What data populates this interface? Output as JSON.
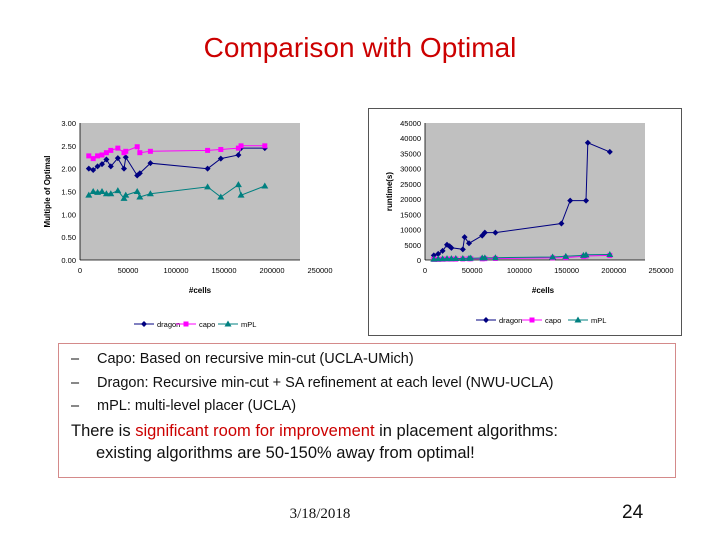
{
  "slide": {
    "title": "Comparison with Optimal",
    "bullets": [
      "Capo: Based on recursive min-cut (UCLA-UMich)",
      "Dragon: Recursive min-cut + SA refinement at each level (NWU-UCLA)",
      "mPL: multi-level placer (UCLA)"
    ],
    "bullet_marker": "–",
    "statement_before": "There is ",
    "statement_highlight": "significant room for improvement",
    "statement_after": " in placement algorithms:",
    "statement_line2": "existing algorithms are 50-150% away from optimal!",
    "date": "3/18/2018",
    "page_number": "24"
  },
  "colors": {
    "title": "#cc0000",
    "highlight": "#cc0000",
    "plot_bg": "#c0c0c0",
    "dragon": "#000080",
    "capo": "#ff00ff",
    "mpl": "#008080"
  },
  "chart_data": [
    {
      "type": "line",
      "xlabel": "#cells",
      "ylabel": "Multiple of Optimal",
      "xlim": [
        0,
        250000
      ],
      "ylim": [
        0,
        3
      ],
      "x_ticks": [
        "0",
        "50000",
        "100000",
        "150000",
        "200000",
        "250000"
      ],
      "y_ticks": [
        "0.00",
        "0.50",
        "1.00",
        "1.50",
        "2.00",
        "2.50",
        "3.00"
      ],
      "legend": "bottom",
      "series": [
        {
          "name": "dragon",
          "marker": "diamond",
          "points": [
            [
              10000,
              2.0
            ],
            [
              15000,
              1.97
            ],
            [
              20000,
              2.05
            ],
            [
              25000,
              2.1
            ],
            [
              30000,
              2.2
            ],
            [
              35000,
              2.05
            ],
            [
              43000,
              2.23
            ],
            [
              50000,
              2.0
            ],
            [
              52000,
              2.25
            ],
            [
              65000,
              1.85
            ],
            [
              68000,
              1.9
            ],
            [
              80000,
              2.12
            ],
            [
              145000,
              2.0
            ],
            [
              160000,
              2.22
            ],
            [
              180000,
              2.3
            ],
            [
              183000,
              2.45
            ],
            [
              210000,
              2.45
            ]
          ]
        },
        {
          "name": "capo",
          "marker": "square",
          "points": [
            [
              10000,
              2.28
            ],
            [
              15000,
              2.22
            ],
            [
              20000,
              2.28
            ],
            [
              25000,
              2.3
            ],
            [
              30000,
              2.35
            ],
            [
              35000,
              2.4
            ],
            [
              43000,
              2.45
            ],
            [
              50000,
              2.35
            ],
            [
              52000,
              2.38
            ],
            [
              65000,
              2.48
            ],
            [
              68000,
              2.35
            ],
            [
              80000,
              2.38
            ],
            [
              145000,
              2.4
            ],
            [
              160000,
              2.42
            ],
            [
              180000,
              2.45
            ],
            [
              183000,
              2.5
            ],
            [
              210000,
              2.5
            ]
          ]
        },
        {
          "name": "mPL",
          "marker": "triangle",
          "points": [
            [
              10000,
              1.42
            ],
            [
              15000,
              1.5
            ],
            [
              20000,
              1.48
            ],
            [
              25000,
              1.5
            ],
            [
              30000,
              1.45
            ],
            [
              35000,
              1.45
            ],
            [
              43000,
              1.52
            ],
            [
              50000,
              1.35
            ],
            [
              52000,
              1.42
            ],
            [
              65000,
              1.5
            ],
            [
              68000,
              1.38
            ],
            [
              80000,
              1.45
            ],
            [
              145000,
              1.6
            ],
            [
              160000,
              1.38
            ],
            [
              180000,
              1.65
            ],
            [
              183000,
              1.42
            ],
            [
              210000,
              1.62
            ]
          ]
        }
      ]
    },
    {
      "type": "line",
      "xlabel": "#cells",
      "ylabel": "runtime(s)",
      "xlim": [
        0,
        250000
      ],
      "ylim": [
        0,
        45000
      ],
      "x_ticks": [
        "0",
        "50000",
        "100000",
        "150000",
        "200000",
        "250000"
      ],
      "y_ticks": [
        "0",
        "5000",
        "10000",
        "15000",
        "20000",
        "25000",
        "30000",
        "35000",
        "40000",
        "45000"
      ],
      "legend": "bottom",
      "series": [
        {
          "name": "dragon",
          "marker": "diamond",
          "points": [
            [
              10000,
              1500
            ],
            [
              15000,
              2000
            ],
            [
              20000,
              3000
            ],
            [
              25000,
              5000
            ],
            [
              28000,
              4500
            ],
            [
              30000,
              4000
            ],
            [
              43000,
              3500
            ],
            [
              45000,
              7500
            ],
            [
              50000,
              5500
            ],
            [
              65000,
              8000
            ],
            [
              68000,
              9000
            ],
            [
              80000,
              9000
            ],
            [
              155000,
              12000
            ],
            [
              165000,
              19500
            ],
            [
              183000,
              19500
            ],
            [
              185000,
              38500
            ],
            [
              210000,
              35500
            ]
          ]
        },
        {
          "name": "capo",
          "marker": "square",
          "points": [
            [
              10000,
              200
            ],
            [
              15000,
              200
            ],
            [
              20000,
              250
            ],
            [
              25000,
              300
            ],
            [
              30000,
              300
            ],
            [
              35000,
              300
            ],
            [
              43000,
              350
            ],
            [
              50000,
              400
            ],
            [
              52000,
              400
            ],
            [
              65000,
              400
            ],
            [
              68000,
              450
            ],
            [
              80000,
              500
            ],
            [
              145000,
              700
            ],
            [
              160000,
              800
            ],
            [
              180000,
              1200
            ],
            [
              183000,
              1300
            ],
            [
              210000,
              1500
            ]
          ]
        },
        {
          "name": "mPL",
          "marker": "triangle",
          "points": [
            [
              10000,
              300
            ],
            [
              15000,
              350
            ],
            [
              20000,
              400
            ],
            [
              25000,
              450
            ],
            [
              30000,
              450
            ],
            [
              35000,
              500
            ],
            [
              43000,
              500
            ],
            [
              50000,
              550
            ],
            [
              52000,
              600
            ],
            [
              65000,
              650
            ],
            [
              68000,
              700
            ],
            [
              80000,
              750
            ],
            [
              145000,
              1000
            ],
            [
              160000,
              1200
            ],
            [
              180000,
              1500
            ],
            [
              183000,
              1700
            ],
            [
              210000,
              1800
            ]
          ]
        }
      ]
    }
  ]
}
